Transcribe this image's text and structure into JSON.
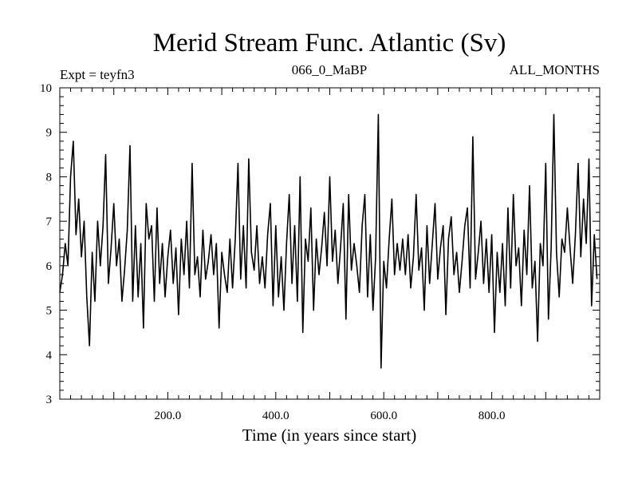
{
  "chart_data": {
    "type": "line",
    "title": "Merid Stream Func. Atlantic (Sv)",
    "subtitle_left": "Expt = teyfn3",
    "subtitle_center": "066_0_MaBP",
    "subtitle_right": "ALL_MONTHS",
    "xlabel": "Time (in years since start)",
    "ylabel": "",
    "xlim": [
      0,
      1000
    ],
    "ylim": [
      3,
      10
    ],
    "x_ticks": [
      200,
      400,
      600,
      800
    ],
    "x_tick_labels": [
      "200.0",
      "400.0",
      "600.0",
      "800.0"
    ],
    "y_ticks": [
      3,
      4,
      5,
      6,
      7,
      8,
      9,
      10
    ],
    "y_tick_labels": [
      "3",
      "4",
      "5",
      "6",
      "7",
      "8",
      "9",
      "10"
    ],
    "series": [
      {
        "name": "Merid Stream Func. Atlantic",
        "color": "#000000",
        "x": [
          0,
          5,
          10,
          15,
          20,
          25,
          30,
          35,
          40,
          45,
          50,
          55,
          60,
          65,
          70,
          75,
          80,
          85,
          90,
          95,
          100,
          105,
          110,
          115,
          120,
          125,
          130,
          135,
          140,
          145,
          150,
          155,
          160,
          165,
          170,
          175,
          180,
          185,
          190,
          195,
          200,
          205,
          210,
          215,
          220,
          225,
          230,
          235,
          240,
          245,
          250,
          255,
          260,
          265,
          270,
          275,
          280,
          285,
          290,
          295,
          300,
          305,
          310,
          315,
          320,
          325,
          330,
          335,
          340,
          345,
          350,
          355,
          360,
          365,
          370,
          375,
          380,
          385,
          390,
          395,
          400,
          405,
          410,
          415,
          420,
          425,
          430,
          435,
          440,
          445,
          450,
          455,
          460,
          465,
          470,
          475,
          480,
          485,
          490,
          495,
          500,
          505,
          510,
          515,
          520,
          525,
          530,
          535,
          540,
          545,
          550,
          555,
          560,
          565,
          570,
          575,
          580,
          585,
          590,
          595,
          600,
          605,
          610,
          615,
          620,
          625,
          630,
          635,
          640,
          645,
          650,
          655,
          660,
          665,
          670,
          675,
          680,
          685,
          690,
          695,
          700,
          705,
          710,
          715,
          720,
          725,
          730,
          735,
          740,
          745,
          750,
          755,
          760,
          765,
          770,
          775,
          780,
          785,
          790,
          795,
          800,
          805,
          810,
          815,
          820,
          825,
          830,
          835,
          840,
          845,
          850,
          855,
          860,
          865,
          870,
          875,
          880,
          885,
          890,
          895,
          900,
          905,
          910,
          915,
          920,
          925,
          930,
          935,
          940,
          945,
          950,
          955,
          960,
          965,
          970,
          975,
          980,
          985,
          990,
          995
        ],
        "values": [
          5.4,
          5.8,
          6.5,
          6.0,
          8.0,
          8.8,
          6.7,
          7.5,
          6.2,
          7.0,
          5.3,
          4.2,
          6.3,
          5.2,
          7.0,
          6.0,
          6.9,
          8.5,
          5.6,
          6.4,
          7.4,
          6.0,
          6.6,
          5.2,
          5.9,
          6.8,
          8.7,
          5.2,
          6.9,
          5.3,
          6.5,
          4.6,
          7.4,
          6.6,
          6.9,
          5.2,
          7.3,
          5.6,
          6.5,
          5.3,
          6.2,
          6.8,
          5.6,
          6.4,
          4.9,
          6.6,
          5.8,
          7.0,
          5.5,
          8.3,
          5.8,
          6.2,
          5.3,
          6.8,
          5.7,
          6.1,
          6.7,
          5.8,
          6.5,
          4.6,
          6.3,
          5.8,
          5.4,
          6.6,
          5.5,
          6.6,
          8.3,
          5.7,
          6.9,
          5.5,
          8.4,
          6.3,
          5.9,
          6.9,
          5.6,
          6.2,
          5.5,
          6.7,
          7.4,
          5.1,
          6.9,
          5.3,
          6.2,
          5.0,
          6.5,
          7.6,
          5.6,
          6.9,
          5.2,
          8.0,
          4.5,
          6.6,
          6.1,
          7.3,
          5.0,
          6.6,
          5.8,
          6.4,
          7.2,
          6.0,
          8.0,
          6.1,
          6.8,
          5.6,
          6.4,
          7.4,
          4.8,
          7.6,
          5.9,
          6.5,
          6.0,
          5.4,
          6.9,
          7.6,
          5.3,
          6.7,
          5.0,
          6.2,
          9.4,
          3.7,
          6.1,
          5.5,
          6.6,
          7.5,
          5.8,
          6.5,
          5.9,
          6.6,
          5.8,
          6.7,
          5.5,
          6.2,
          7.6,
          5.9,
          6.4,
          5.0,
          6.9,
          5.6,
          6.5,
          7.4,
          5.7,
          6.4,
          6.9,
          4.9,
          6.6,
          7.1,
          5.8,
          6.3,
          5.4,
          6.1,
          6.9,
          7.3,
          5.5,
          8.9,
          5.7,
          6.3,
          7.0,
          5.6,
          6.6,
          5.4,
          6.7,
          4.5,
          6.3,
          5.4,
          6.5,
          5.1,
          7.3,
          5.5,
          7.6,
          6.0,
          6.4,
          5.1,
          6.8,
          5.8,
          7.8,
          5.5,
          6.1,
          4.3,
          6.5,
          6.0,
          8.3,
          4.8,
          6.4,
          9.4,
          6.3,
          5.3,
          6.6,
          6.3,
          7.3,
          6.4,
          5.6,
          6.7,
          8.3,
          6.2,
          7.5,
          6.5,
          8.4,
          5.1,
          6.7,
          5.7
        ]
      }
    ]
  }
}
